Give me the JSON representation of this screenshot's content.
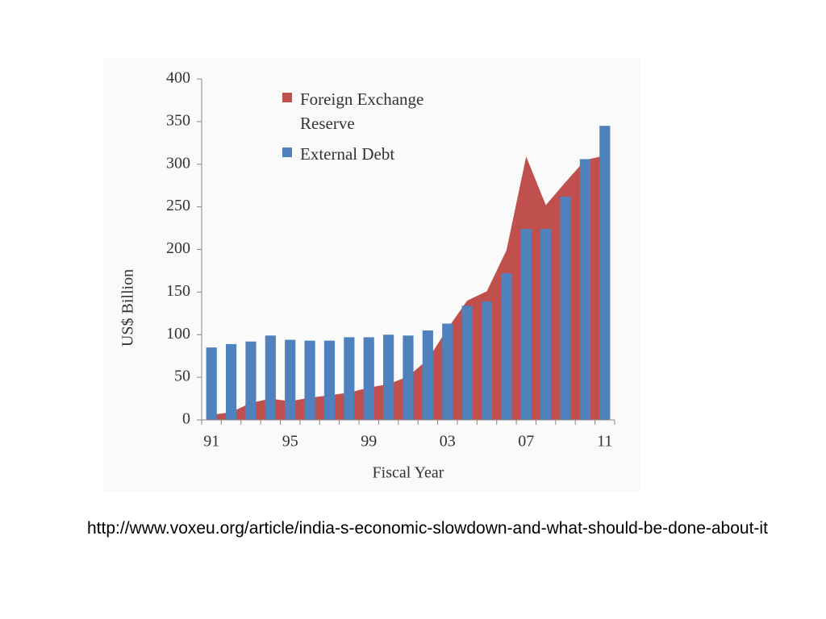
{
  "chart_data": {
    "type": "combo",
    "xlabel": "Fiscal Year",
    "ylabel": "US$ Billion",
    "categories": [
      "91",
      null,
      null,
      null,
      "95",
      null,
      null,
      null,
      "99",
      null,
      null,
      null,
      "03",
      null,
      null,
      null,
      "07",
      null,
      null,
      null,
      "11"
    ],
    "series": [
      {
        "name": "Foreign Exchange Reserve",
        "type": "area",
        "color": "#c0504d",
        "values": [
          6,
          9,
          20,
          25,
          22,
          26,
          29,
          32,
          38,
          42,
          51,
          71,
          107,
          140,
          151,
          199,
          309,
          252,
          279,
          305,
          310
        ]
      },
      {
        "name": "External Debt",
        "type": "bar",
        "color": "#4f81bd",
        "values": [
          85,
          89,
          92,
          99,
          94,
          93,
          93,
          97,
          97,
          100,
          99,
          105,
          113,
          134,
          139,
          172,
          224,
          224,
          262,
          306,
          345
        ]
      }
    ],
    "ylim": [
      0,
      400
    ],
    "yticks": [
      0,
      50,
      100,
      150,
      200,
      250,
      300,
      350,
      400
    ],
    "grid": false,
    "legend": "top-left"
  },
  "caption": "http://www.voxeu.org/article/india-s-economic-slowdown-and-what-should-be-done-about-it"
}
